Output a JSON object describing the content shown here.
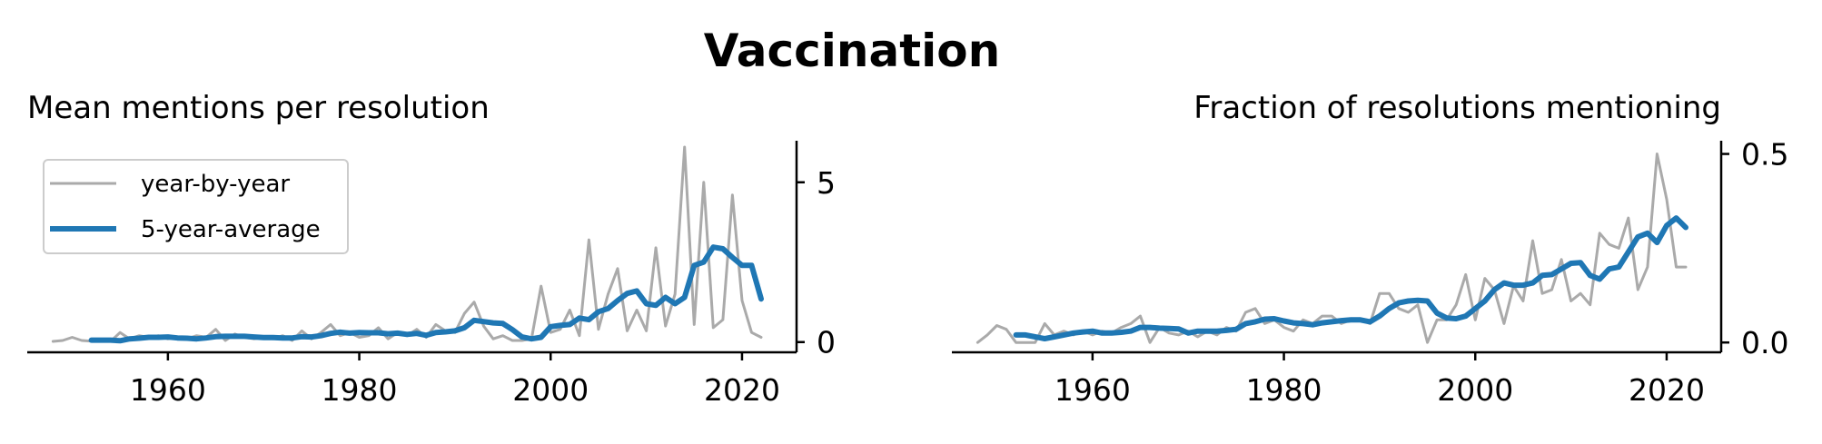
{
  "chart_data": {
    "title": "Vaccination",
    "colors": {
      "year_by_year": "#aaaaaa",
      "avg": "#1f77b4"
    },
    "legend": {
      "placement": "top-left",
      "items": [
        "year-by-year",
        "5-year-average"
      ]
    },
    "panels": [
      {
        "type": "line",
        "subtitle": "Mean mentions per resolution",
        "xlabel": "",
        "ylabel": "",
        "xlim": [
          1945.3,
          2025.7
        ],
        "ylim": [
          -0.32,
          6.3
        ],
        "xticks": [
          1960,
          1980,
          2000,
          2020
        ],
        "yticks": [
          0,
          5
        ],
        "ytick_labels": [
          "0",
          "5"
        ],
        "series": [
          {
            "name": "year-by-year",
            "x": [
              1948,
              1949,
              1950,
              1951,
              1952,
              1953,
              1954,
              1955,
              1956,
              1957,
              1958,
              1959,
              1960,
              1961,
              1962,
              1963,
              1964,
              1965,
              1966,
              1967,
              1968,
              1969,
              1970,
              1971,
              1972,
              1973,
              1974,
              1975,
              1976,
              1977,
              1978,
              1979,
              1980,
              1981,
              1982,
              1983,
              1984,
              1985,
              1986,
              1987,
              1988,
              1989,
              1990,
              1991,
              1992,
              1993,
              1994,
              1995,
              1996,
              1997,
              1998,
              1999,
              2000,
              2001,
              2002,
              2003,
              2004,
              2005,
              2006,
              2007,
              2008,
              2009,
              2010,
              2011,
              2012,
              2013,
              2014,
              2015,
              2016,
              2017,
              2018,
              2019,
              2020,
              2021,
              2022
            ],
            "y": [
              0.02,
              0.05,
              0.15,
              0.05,
              0.03,
              0.02,
              0.02,
              0.3,
              0.1,
              0.2,
              0.15,
              0.2,
              0.1,
              0.15,
              0.1,
              0.2,
              0.15,
              0.4,
              0.05,
              0.25,
              0.15,
              0.1,
              0.15,
              0.1,
              0.2,
              0.05,
              0.35,
              0.1,
              0.3,
              0.55,
              0.2,
              0.3,
              0.15,
              0.2,
              0.45,
              0.1,
              0.3,
              0.2,
              0.4,
              0.15,
              0.55,
              0.35,
              0.3,
              0.9,
              1.25,
              0.5,
              0.1,
              0.2,
              0.05,
              0.05,
              0.1,
              1.75,
              0.3,
              0.4,
              1.0,
              0.2,
              3.2,
              0.4,
              1.5,
              2.3,
              0.35,
              1.0,
              0.35,
              2.95,
              0.5,
              1.5,
              6.1,
              0.55,
              5.0,
              0.45,
              0.7,
              4.6,
              1.3,
              0.3,
              0.15
            ]
          },
          {
            "name": "5-year-average",
            "x": [
              1952,
              1953,
              1954,
              1955,
              1956,
              1957,
              1958,
              1959,
              1960,
              1961,
              1962,
              1963,
              1964,
              1965,
              1966,
              1967,
              1968,
              1969,
              1970,
              1971,
              1972,
              1973,
              1974,
              1975,
              1976,
              1977,
              1978,
              1979,
              1980,
              1981,
              1982,
              1983,
              1984,
              1985,
              1986,
              1987,
              1988,
              1989,
              1990,
              1991,
              1992,
              1993,
              1994,
              1995,
              1996,
              1997,
              1998,
              1999,
              2000,
              2001,
              2002,
              2003,
              2004,
              2005,
              2006,
              2007,
              2008,
              2009,
              2010,
              2011,
              2012,
              2013,
              2014,
              2015,
              2016,
              2017,
              2018,
              2019,
              2020,
              2021,
              2022
            ],
            "y": [
              0.06,
              0.06,
              0.06,
              0.04,
              0.1,
              0.12,
              0.15,
              0.15,
              0.16,
              0.13,
              0.12,
              0.1,
              0.13,
              0.17,
              0.18,
              0.18,
              0.18,
              0.16,
              0.14,
              0.14,
              0.13,
              0.13,
              0.17,
              0.16,
              0.2,
              0.27,
              0.31,
              0.28,
              0.3,
              0.29,
              0.29,
              0.26,
              0.28,
              0.24,
              0.27,
              0.21,
              0.3,
              0.32,
              0.35,
              0.45,
              0.68,
              0.64,
              0.6,
              0.58,
              0.39,
              0.16,
              0.1,
              0.15,
              0.48,
              0.52,
              0.55,
              0.75,
              0.7,
              0.95,
              1.05,
              1.3,
              1.52,
              1.6,
              1.2,
              1.15,
              1.4,
              1.2,
              1.4,
              2.4,
              2.5,
              2.97,
              2.92,
              2.65,
              2.4,
              2.4,
              1.35
            ]
          }
        ]
      },
      {
        "type": "line",
        "subtitle": "Fraction of resolutions mentioning",
        "xlabel": "",
        "ylabel": "",
        "xlim": [
          1945.3,
          2025.7
        ],
        "ylim": [
          -0.026,
          0.535
        ],
        "xticks": [
          1960,
          1980,
          2000,
          2020
        ],
        "yticks": [
          0.0,
          0.5
        ],
        "ytick_labels": [
          "0.0",
          "0.5"
        ],
        "series": [
          {
            "name": "year-by-year",
            "x": [
              1948,
              1949,
              1950,
              1951,
              1952,
              1953,
              1954,
              1955,
              1956,
              1957,
              1958,
              1959,
              1960,
              1961,
              1962,
              1963,
              1964,
              1965,
              1966,
              1967,
              1968,
              1969,
              1970,
              1971,
              1972,
              1973,
              1974,
              1975,
              1976,
              1977,
              1978,
              1979,
              1980,
              1981,
              1982,
              1983,
              1984,
              1985,
              1986,
              1987,
              1988,
              1989,
              1990,
              1991,
              1992,
              1993,
              1994,
              1995,
              1996,
              1997,
              1998,
              1999,
              2000,
              2001,
              2002,
              2003,
              2004,
              2005,
              2006,
              2007,
              2008,
              2009,
              2010,
              2011,
              2012,
              2013,
              2014,
              2015,
              2016,
              2017,
              2018,
              2019,
              2020,
              2021,
              2022
            ],
            "y": [
              0.0,
              0.02,
              0.045,
              0.035,
              0.0,
              0.0,
              0.0,
              0.05,
              0.02,
              0.03,
              0.02,
              0.03,
              0.02,
              0.03,
              0.025,
              0.04,
              0.05,
              0.07,
              0.0,
              0.04,
              0.025,
              0.02,
              0.03,
              0.015,
              0.03,
              0.02,
              0.04,
              0.03,
              0.08,
              0.09,
              0.05,
              0.06,
              0.04,
              0.03,
              0.06,
              0.05,
              0.07,
              0.07,
              0.05,
              0.06,
              0.06,
              0.05,
              0.13,
              0.13,
              0.09,
              0.08,
              0.1,
              0.0,
              0.06,
              0.06,
              0.1,
              0.18,
              0.06,
              0.17,
              0.14,
              0.05,
              0.15,
              0.11,
              0.27,
              0.13,
              0.14,
              0.22,
              0.11,
              0.13,
              0.1,
              0.29,
              0.26,
              0.25,
              0.33,
              0.14,
              0.2,
              0.5,
              0.38,
              0.2,
              0.2
            ]
          },
          {
            "name": "5-year-average",
            "x": [
              1952,
              1953,
              1954,
              1955,
              1956,
              1957,
              1958,
              1959,
              1960,
              1961,
              1962,
              1963,
              1964,
              1965,
              1966,
              1967,
              1968,
              1969,
              1970,
              1971,
              1972,
              1973,
              1974,
              1975,
              1976,
              1977,
              1978,
              1979,
              1980,
              1981,
              1982,
              1983,
              1984,
              1985,
              1986,
              1987,
              1988,
              1989,
              1990,
              1991,
              1992,
              1993,
              1994,
              1995,
              1996,
              1997,
              1998,
              1999,
              2000,
              2001,
              2002,
              2003,
              2004,
              2005,
              2006,
              2007,
              2008,
              2009,
              2010,
              2011,
              2012,
              2013,
              2014,
              2015,
              2016,
              2017,
              2018,
              2019,
              2020,
              2021,
              2022
            ],
            "y": [
              0.02,
              0.02,
              0.015,
              0.01,
              0.015,
              0.02,
              0.025,
              0.028,
              0.03,
              0.025,
              0.025,
              0.027,
              0.03,
              0.04,
              0.04,
              0.038,
              0.037,
              0.036,
              0.025,
              0.03,
              0.03,
              0.03,
              0.032,
              0.035,
              0.05,
              0.055,
              0.062,
              0.063,
              0.057,
              0.052,
              0.05,
              0.047,
              0.052,
              0.055,
              0.058,
              0.06,
              0.06,
              0.055,
              0.07,
              0.09,
              0.105,
              0.11,
              0.112,
              0.11,
              0.078,
              0.065,
              0.063,
              0.07,
              0.09,
              0.11,
              0.14,
              0.158,
              0.152,
              0.152,
              0.158,
              0.178,
              0.18,
              0.195,
              0.21,
              0.212,
              0.178,
              0.168,
              0.195,
              0.2,
              0.24,
              0.28,
              0.29,
              0.265,
              0.31,
              0.33,
              0.305
            ]
          }
        ]
      }
    ]
  }
}
